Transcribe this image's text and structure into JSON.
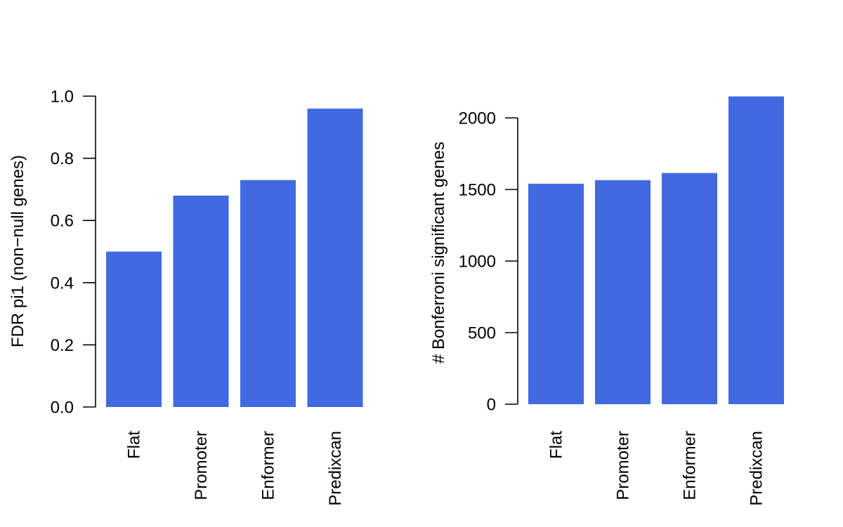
{
  "chart_data": [
    {
      "type": "bar",
      "title": "",
      "xlabel": "",
      "ylabel": "FDR pi1 (non−null genes)",
      "categories": [
        "Flat",
        "Promoter",
        "Enformer",
        "Predixcan"
      ],
      "values": [
        0.5,
        0.68,
        0.73,
        0.96
      ],
      "ylim": [
        0,
        1.0
      ],
      "yticks": [
        "0.0",
        "0.2",
        "0.4",
        "0.6",
        "0.8",
        "1.0"
      ],
      "ytick_values": [
        0,
        0.2,
        0.4,
        0.6,
        0.8,
        1.0
      ],
      "bar_color": "#4169e1",
      "grid": false
    },
    {
      "type": "bar",
      "title": "",
      "xlabel": "",
      "ylabel": "# Bonferroni significant genes",
      "categories": [
        "Flat",
        "Promoter",
        "Enformer",
        "Predixcan"
      ],
      "values": [
        1540,
        1565,
        1615,
        2150
      ],
      "ylim": [
        0,
        2000
      ],
      "yticks": [
        "0",
        "500",
        "1000",
        "1500",
        "2000"
      ],
      "ytick_values": [
        0,
        500,
        1000,
        1500,
        2000
      ],
      "bar_color": "#4169e1",
      "grid": false
    }
  ]
}
